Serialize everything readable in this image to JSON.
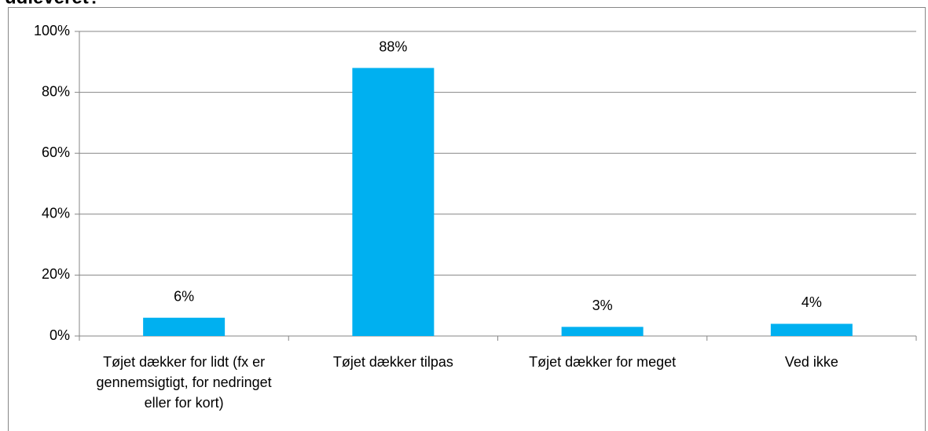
{
  "chart_data": {
    "type": "bar",
    "title": "udleveret?",
    "categories": [
      "Tøjet dækker for lidt (fx er gennemsigtigt, for nedringet eller for kort)",
      "Tøjet dækker tilpas",
      "Tøjet dækker for meget",
      "Ved ikke"
    ],
    "values": [
      6,
      88,
      3,
      4
    ],
    "value_labels": [
      "6%",
      "88%",
      "3%",
      "4%"
    ],
    "color": "#00b0f0",
    "ylim": [
      0,
      100
    ],
    "yticks": [
      {
        "value": 0,
        "label": "0%"
      },
      {
        "value": 20,
        "label": "20%"
      },
      {
        "value": 40,
        "label": "40%"
      },
      {
        "value": 60,
        "label": "60%"
      },
      {
        "value": 80,
        "label": "80%"
      },
      {
        "value": 100,
        "label": "100%"
      }
    ],
    "grid": true
  }
}
